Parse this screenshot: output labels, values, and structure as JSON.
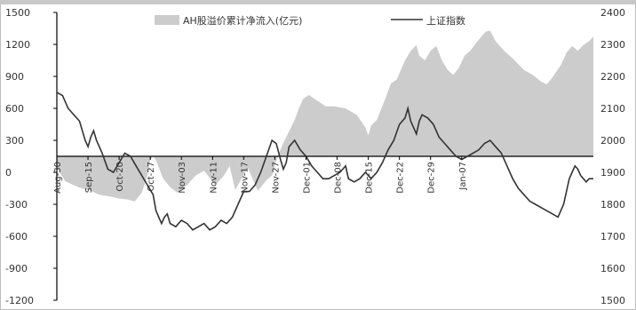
{
  "chart_data": {
    "type": "area+line",
    "title": "",
    "legend": {
      "placement": "top-center",
      "entries": [
        {
          "key": "area",
          "label": "AH股溢价累计净流入(亿元)"
        },
        {
          "key": "line",
          "label": "上证指数"
        }
      ]
    },
    "x_tick_labels": [
      "Aug-30",
      "Sep-15",
      "Oct-20",
      "Oct-27",
      "Nov-03",
      "Nov-11",
      "Nov-17",
      "Nov-27",
      "Dec-01",
      "Dec-08",
      "Dec-15",
      "Dec-22",
      "Dec-29",
      "Jan-07"
    ],
    "left_axis": {
      "ylim": [
        -1500,
        1500
      ],
      "tick_labels": [
        "1500",
        "1200",
        "900",
        "600",
        "300",
        "0",
        "-300",
        "-600",
        "-900",
        "-1200"
      ]
    },
    "right_axis": {
      "ylim": [
        1500,
        2400
      ],
      "tick_labels": [
        "2400",
        "2300",
        "2200",
        "2100",
        "2000",
        "1900",
        "1800",
        "1700",
        "1600",
        "1500"
      ]
    },
    "series": [
      {
        "key": "area",
        "name": "AH股溢价累计净流入(亿元)",
        "axis": "left",
        "points": [
          [
            0,
            -120
          ],
          [
            6,
            -260
          ],
          [
            15,
            -320
          ],
          [
            24,
            -360
          ],
          [
            30,
            -400
          ],
          [
            38,
            -420
          ],
          [
            44,
            -440
          ],
          [
            50,
            -450
          ],
          [
            55,
            -470
          ],
          [
            60,
            -380
          ],
          [
            64,
            -200
          ],
          [
            66,
            -40
          ],
          [
            68,
            0
          ],
          [
            70,
            -40
          ],
          [
            75,
            -230
          ],
          [
            80,
            -320
          ],
          [
            85,
            -380
          ],
          [
            92,
            -300
          ],
          [
            98,
            -200
          ],
          [
            104,
            -150
          ],
          [
            112,
            -300
          ],
          [
            118,
            -200
          ],
          [
            122,
            -100
          ],
          [
            126,
            -350
          ],
          [
            131,
            -220
          ],
          [
            135,
            -120
          ],
          [
            142,
            -360
          ],
          [
            148,
            -250
          ],
          [
            152,
            -200
          ],
          [
            156,
            0
          ],
          [
            160,
            140
          ],
          [
            164,
            260
          ],
          [
            168,
            380
          ],
          [
            171,
            500
          ],
          [
            174,
            600
          ],
          [
            178,
            640
          ],
          [
            184,
            580
          ],
          [
            190,
            520
          ],
          [
            196,
            520
          ],
          [
            204,
            500
          ],
          [
            212,
            430
          ],
          [
            218,
            300
          ],
          [
            220,
            220
          ],
          [
            222,
            320
          ],
          [
            226,
            380
          ],
          [
            232,
            600
          ],
          [
            236,
            760
          ],
          [
            240,
            800
          ],
          [
            246,
            1000
          ],
          [
            250,
            1100
          ],
          [
            254,
            1160
          ],
          [
            256,
            1050
          ],
          [
            260,
            1000
          ],
          [
            264,
            1100
          ],
          [
            268,
            1150
          ],
          [
            272,
            1000
          ],
          [
            276,
            900
          ],
          [
            280,
            850
          ],
          [
            284,
            920
          ],
          [
            288,
            1050
          ],
          [
            292,
            1100
          ],
          [
            296,
            1180
          ],
          [
            300,
            1250
          ],
          [
            303,
            1300
          ],
          [
            306,
            1310
          ],
          [
            310,
            1200
          ],
          [
            316,
            1100
          ],
          [
            322,
            1020
          ],
          [
            330,
            900
          ],
          [
            336,
            850
          ],
          [
            342,
            780
          ],
          [
            346,
            750
          ],
          [
            350,
            820
          ],
          [
            356,
            950
          ],
          [
            360,
            1080
          ],
          [
            364,
            1150
          ],
          [
            368,
            1100
          ],
          [
            372,
            1160
          ],
          [
            376,
            1200
          ],
          [
            379,
            1250
          ]
        ]
      },
      {
        "key": "line",
        "name": "上证指数",
        "axis": "right",
        "points": [
          [
            0,
            2150
          ],
          [
            4,
            2140
          ],
          [
            8,
            2100
          ],
          [
            12,
            2080
          ],
          [
            16,
            2060
          ],
          [
            20,
            2000
          ],
          [
            22,
            1980
          ],
          [
            24,
            2010
          ],
          [
            26,
            2030
          ],
          [
            28,
            2000
          ],
          [
            32,
            1960
          ],
          [
            36,
            1910
          ],
          [
            40,
            1900
          ],
          [
            44,
            1930
          ],
          [
            48,
            1960
          ],
          [
            52,
            1950
          ],
          [
            56,
            1920
          ],
          [
            60,
            1890
          ],
          [
            64,
            1860
          ],
          [
            68,
            1830
          ],
          [
            70,
            1780
          ],
          [
            72,
            1760
          ],
          [
            74,
            1740
          ],
          [
            76,
            1760
          ],
          [
            78,
            1770
          ],
          [
            80,
            1740
          ],
          [
            84,
            1730
          ],
          [
            88,
            1750
          ],
          [
            92,
            1740
          ],
          [
            96,
            1720
          ],
          [
            100,
            1730
          ],
          [
            104,
            1740
          ],
          [
            108,
            1720
          ],
          [
            112,
            1730
          ],
          [
            116,
            1750
          ],
          [
            120,
            1740
          ],
          [
            124,
            1760
          ],
          [
            128,
            1800
          ],
          [
            132,
            1840
          ],
          [
            136,
            1840
          ],
          [
            140,
            1860
          ],
          [
            144,
            1900
          ],
          [
            148,
            1950
          ],
          [
            152,
            2000
          ],
          [
            155,
            1990
          ],
          [
            158,
            1940
          ],
          [
            160,
            1910
          ],
          [
            162,
            1930
          ],
          [
            164,
            1980
          ],
          [
            168,
            2000
          ],
          [
            172,
            1970
          ],
          [
            176,
            1950
          ],
          [
            180,
            1920
          ],
          [
            184,
            1900
          ],
          [
            188,
            1880
          ],
          [
            192,
            1880
          ],
          [
            196,
            1890
          ],
          [
            200,
            1900
          ],
          [
            204,
            1920
          ],
          [
            206,
            1880
          ],
          [
            210,
            1870
          ],
          [
            214,
            1880
          ],
          [
            218,
            1900
          ],
          [
            222,
            1880
          ],
          [
            226,
            1900
          ],
          [
            230,
            1930
          ],
          [
            234,
            1970
          ],
          [
            238,
            2000
          ],
          [
            242,
            2050
          ],
          [
            246,
            2070
          ],
          [
            248,
            2100
          ],
          [
            250,
            2060
          ],
          [
            254,
            2020
          ],
          [
            256,
            2060
          ],
          [
            258,
            2080
          ],
          [
            262,
            2070
          ],
          [
            266,
            2050
          ],
          [
            270,
            2010
          ],
          [
            274,
            1990
          ],
          [
            278,
            1970
          ],
          [
            282,
            1950
          ],
          [
            286,
            1940
          ],
          [
            290,
            1950
          ],
          [
            294,
            1960
          ],
          [
            298,
            1970
          ],
          [
            302,
            1990
          ],
          [
            306,
            2000
          ],
          [
            310,
            1980
          ],
          [
            314,
            1960
          ],
          [
            318,
            1920
          ],
          [
            322,
            1880
          ],
          [
            326,
            1850
          ],
          [
            330,
            1830
          ],
          [
            334,
            1810
          ],
          [
            338,
            1800
          ],
          [
            342,
            1790
          ],
          [
            346,
            1780
          ],
          [
            350,
            1770
          ],
          [
            354,
            1760
          ],
          [
            358,
            1800
          ],
          [
            360,
            1840
          ],
          [
            362,
            1880
          ],
          [
            364,
            1900
          ],
          [
            366,
            1920
          ],
          [
            368,
            1910
          ],
          [
            370,
            1890
          ],
          [
            372,
            1880
          ],
          [
            374,
            1870
          ],
          [
            376,
            1880
          ],
          [
            379,
            1880
          ]
        ]
      }
    ],
    "x_tick_positions": [
      0,
      22,
      44,
      66,
      88,
      110,
      132,
      154,
      176,
      198,
      220,
      242,
      264,
      286
    ],
    "x_range": [
      0,
      379
    ],
    "colors": {
      "area": "#cccccc",
      "line": "#333333",
      "axis": "#000000"
    },
    "grid": false
  }
}
